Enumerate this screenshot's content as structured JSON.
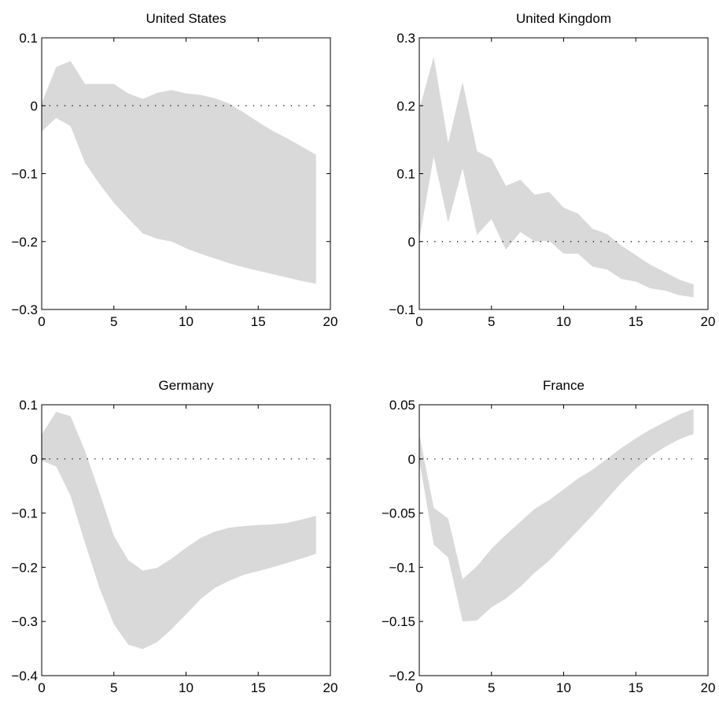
{
  "figure": {
    "background": "#ffffff",
    "band_color": "#d9d9d9",
    "zero_line_style": "dotted"
  },
  "chart_data": [
    {
      "type": "area",
      "title": "United States",
      "xlabel": "",
      "ylabel": "",
      "xlim": [
        0,
        20
      ],
      "ylim": [
        -0.3,
        0.1
      ],
      "xticks": [
        0,
        5,
        10,
        15,
        20
      ],
      "yticks": [
        -0.3,
        -0.2,
        -0.1,
        0,
        0.1
      ],
      "xtick_labels": [
        "0",
        "5",
        "10",
        "15",
        "20"
      ],
      "ytick_labels": [
        "−0.3",
        "−0.2",
        "−0.1",
        "0",
        "0.1"
      ],
      "grid": false,
      "zero_line": true,
      "x": [
        0,
        1,
        2,
        3,
        4,
        5,
        6,
        7,
        8,
        9,
        10,
        11,
        12,
        13,
        14,
        15,
        16,
        17,
        18,
        19
      ],
      "upper": [
        0.004,
        0.057,
        0.066,
        0.032,
        0.032,
        0.032,
        0.018,
        0.01,
        0.019,
        0.023,
        0.018,
        0.016,
        0.011,
        0.003,
        -0.01,
        -0.024,
        -0.037,
        -0.048,
        -0.06,
        -0.072
      ],
      "lower": [
        -0.038,
        -0.018,
        -0.03,
        -0.084,
        -0.115,
        -0.143,
        -0.166,
        -0.188,
        -0.196,
        -0.2,
        -0.21,
        -0.218,
        -0.225,
        -0.232,
        -0.238,
        -0.243,
        -0.248,
        -0.253,
        -0.258,
        -0.262
      ]
    },
    {
      "type": "area",
      "title": "United Kingdom",
      "xlabel": "",
      "ylabel": "",
      "xlim": [
        0,
        20
      ],
      "ylim": [
        -0.1,
        0.3
      ],
      "xticks": [
        0,
        5,
        10,
        15,
        20
      ],
      "yticks": [
        -0.1,
        0,
        0.1,
        0.2,
        0.3
      ],
      "xtick_labels": [
        "0",
        "5",
        "10",
        "15",
        "20"
      ],
      "ytick_labels": [
        "−0.1",
        "0",
        "0.1",
        "0.2",
        "0.3"
      ],
      "grid": false,
      "zero_line": true,
      "x": [
        0,
        1,
        2,
        3,
        4,
        5,
        6,
        7,
        8,
        9,
        10,
        11,
        12,
        13,
        14,
        15,
        16,
        17,
        18,
        19
      ],
      "upper": [
        0.195,
        0.272,
        0.145,
        0.235,
        0.133,
        0.122,
        0.082,
        0.091,
        0.069,
        0.073,
        0.05,
        0.041,
        0.019,
        0.011,
        -0.006,
        -0.02,
        -0.034,
        -0.045,
        -0.056,
        -0.063
      ],
      "lower": [
        0.003,
        0.125,
        0.028,
        0.108,
        0.01,
        0.033,
        -0.012,
        0.014,
        0.0,
        0.001,
        -0.018,
        -0.018,
        -0.037,
        -0.041,
        -0.055,
        -0.059,
        -0.069,
        -0.072,
        -0.079,
        -0.082
      ]
    },
    {
      "type": "area",
      "title": "Germany",
      "xlabel": "",
      "ylabel": "",
      "xlim": [
        0,
        20
      ],
      "ylim": [
        -0.4,
        0.1
      ],
      "xticks": [
        0,
        5,
        10,
        15,
        20
      ],
      "yticks": [
        -0.4,
        -0.3,
        -0.2,
        -0.1,
        0,
        0.1
      ],
      "xtick_labels": [
        "0",
        "5",
        "10",
        "15",
        "20"
      ],
      "ytick_labels": [
        "−0.4",
        "−0.3",
        "−0.2",
        "−0.1",
        "0",
        "0.1"
      ],
      "grid": false,
      "zero_line": true,
      "x": [
        0,
        1,
        2,
        3,
        4,
        5,
        6,
        7,
        8,
        9,
        10,
        11,
        12,
        13,
        14,
        15,
        16,
        17,
        18,
        19
      ],
      "upper": [
        0.045,
        0.087,
        0.079,
        0.015,
        -0.062,
        -0.142,
        -0.187,
        -0.206,
        -0.201,
        -0.184,
        -0.164,
        -0.146,
        -0.134,
        -0.127,
        -0.124,
        -0.122,
        -0.121,
        -0.118,
        -0.112,
        -0.105
      ],
      "lower": [
        -0.003,
        -0.014,
        -0.068,
        -0.155,
        -0.238,
        -0.305,
        -0.343,
        -0.351,
        -0.338,
        -0.314,
        -0.287,
        -0.259,
        -0.238,
        -0.225,
        -0.214,
        -0.207,
        -0.2,
        -0.192,
        -0.184,
        -0.175
      ]
    },
    {
      "type": "area",
      "title": "France",
      "xlabel": "",
      "ylabel": "",
      "xlim": [
        0,
        20
      ],
      "ylim": [
        -0.2,
        0.05
      ],
      "xticks": [
        0,
        5,
        10,
        15,
        20
      ],
      "yticks": [
        -0.2,
        -0.15,
        -0.1,
        -0.05,
        0,
        0.05
      ],
      "xtick_labels": [
        "0",
        "5",
        "10",
        "15",
        "20"
      ],
      "ytick_labels": [
        "−0.2",
        "−0.15",
        "−0.1",
        "−0.05",
        "0",
        "0.05"
      ],
      "grid": false,
      "zero_line": true,
      "x": [
        0,
        1,
        2,
        3,
        4,
        5,
        6,
        7,
        8,
        9,
        10,
        11,
        12,
        13,
        14,
        15,
        16,
        17,
        18,
        19
      ],
      "upper": [
        0.023,
        -0.045,
        -0.055,
        -0.111,
        -0.099,
        -0.083,
        -0.07,
        -0.058,
        -0.046,
        -0.038,
        -0.028,
        -0.018,
        -0.01,
        0.0,
        0.01,
        0.019,
        0.027,
        0.034,
        0.041,
        0.046
      ],
      "lower": [
        -0.001,
        -0.079,
        -0.091,
        -0.15,
        -0.149,
        -0.137,
        -0.129,
        -0.118,
        -0.105,
        -0.094,
        -0.08,
        -0.066,
        -0.052,
        -0.037,
        -0.022,
        -0.009,
        0.002,
        0.011,
        0.018,
        0.023
      ]
    }
  ]
}
